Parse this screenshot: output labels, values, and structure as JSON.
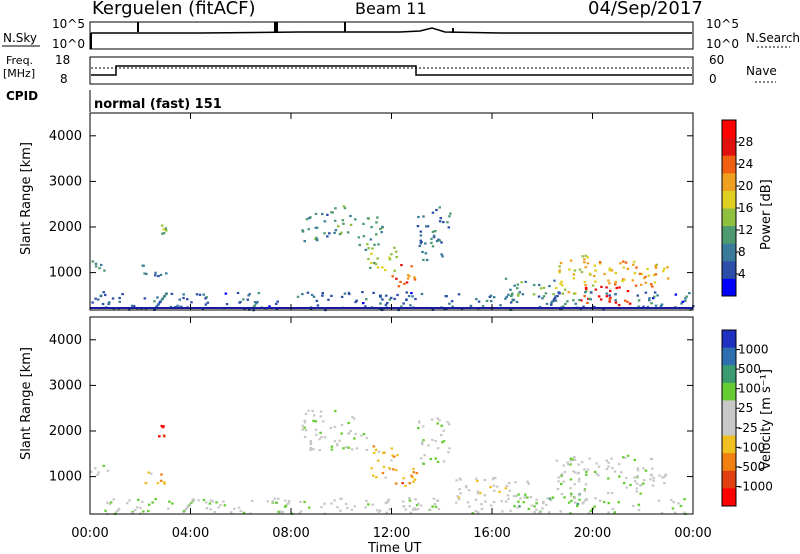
{
  "header": {
    "station": "Kerguelen (fitACF)",
    "beam": "Beam 11",
    "date": "04/Sep/2017"
  },
  "status_panel": {
    "nsky_label": "N.Sky",
    "nsky_ticks": [
      "10^5",
      "10^0"
    ],
    "nsearch_label": "N.Search",
    "nsearch_ticks": [
      "10^5",
      "10^0"
    ],
    "freq_label_1": "Freq.",
    "freq_label_2": "[MHz]",
    "freq_ticks": [
      "18",
      "8"
    ],
    "nave_label": "Nave",
    "nave_ticks": [
      "60",
      "0"
    ],
    "cpid_label": "CPID",
    "cpid_value": "normal (fast) 151"
  },
  "x_axis": {
    "label": "Time UT",
    "ticks": [
      "00:00",
      "04:00",
      "08:00",
      "12:00",
      "16:00",
      "20:00",
      "00:00"
    ],
    "range_hours": [
      0,
      24
    ]
  },
  "chart_data": [
    {
      "type": "heatmap",
      "quantity": "power",
      "ylabel": "Slant Range [km]",
      "yticks": [
        "1000",
        "2000",
        "3000",
        "4000"
      ],
      "ylim": [
        180,
        4500
      ],
      "colorbar_label": "Power [dB]",
      "colorbar_ticks": [
        "4",
        "8",
        "12",
        "16",
        "20",
        "24",
        "28"
      ],
      "colorbar_range": [
        0,
        32
      ],
      "colors": [
        "#0000ff",
        "#2c4ea8",
        "#3a7a9a",
        "#4e9a70",
        "#8fc040",
        "#e0d020",
        "#f0a020",
        "#f06010",
        "#e01010",
        "#ff0000"
      ],
      "blobs": [
        {
          "t0": 0.0,
          "t1": 0.8,
          "r0": 1050,
          "r1": 1300,
          "v": 10
        },
        {
          "t0": 2.0,
          "t1": 3.0,
          "r0": 850,
          "r1": 1200,
          "v": 9
        },
        {
          "t0": 2.7,
          "t1": 3.0,
          "r0": 1850,
          "r1": 2150,
          "v": 14
        },
        {
          "t0": 8.4,
          "t1": 9.6,
          "r0": 1700,
          "r1": 2400,
          "v": 9
        },
        {
          "t0": 9.6,
          "t1": 10.6,
          "r0": 1850,
          "r1": 2500,
          "v": 11
        },
        {
          "t0": 10.6,
          "t1": 11.6,
          "r0": 1500,
          "r1": 2300,
          "v": 12
        },
        {
          "t0": 11.0,
          "t1": 12.2,
          "r0": 1000,
          "r1": 1600,
          "v": 15
        },
        {
          "t0": 12.0,
          "t1": 13.0,
          "r0": 700,
          "r1": 1200,
          "v": 25
        },
        {
          "t0": 13.0,
          "t1": 14.3,
          "r0": 1300,
          "r1": 2500,
          "v": 8
        },
        {
          "t0": 16.5,
          "t1": 18.5,
          "r0": 400,
          "r1": 900,
          "v": 11
        },
        {
          "t0": 18.5,
          "t1": 20.0,
          "r0": 500,
          "r1": 1400,
          "v": 18
        },
        {
          "t0": 19.5,
          "t1": 21.5,
          "r0": 300,
          "r1": 800,
          "v": 28
        },
        {
          "t0": 20.0,
          "t1": 22.5,
          "r0": 700,
          "r1": 1300,
          "v": 21
        },
        {
          "t0": 22.0,
          "t1": 23.0,
          "r0": 800,
          "r1": 1200,
          "v": 19
        },
        {
          "t0": 0.0,
          "t1": 24.0,
          "r0": 200,
          "r1": 600,
          "v": 7
        }
      ]
    },
    {
      "type": "heatmap",
      "quantity": "velocity",
      "ylabel": "Slant Range [km]",
      "yticks": [
        "1000",
        "2000",
        "3000",
        "4000"
      ],
      "ylim": [
        180,
        4500
      ],
      "colorbar_label": "Velocity [m s⁻¹]",
      "colorbar_ticks": [
        "1000",
        "500",
        "100",
        "25",
        "-25",
        "-100",
        "-500",
        "-1000"
      ],
      "colors": [
        "#2030c0",
        "#2f6fb0",
        "#3a9a70",
        "#66cc33",
        "#c8c8c8",
        "#c8c8c8",
        "#f0c020",
        "#f08010",
        "#e04010",
        "#ff0000"
      ],
      "blobs": [
        {
          "t0": 0.0,
          "t1": 0.8,
          "r0": 1050,
          "r1": 1300,
          "v": 4
        },
        {
          "t0": 2.0,
          "t1": 3.0,
          "r0": 850,
          "r1": 1200,
          "v": 6
        },
        {
          "t0": 2.7,
          "t1": 3.0,
          "r0": 1850,
          "r1": 2150,
          "v": 8
        },
        {
          "t0": 8.4,
          "t1": 11.0,
          "r0": 1600,
          "r1": 2500,
          "v": 4
        },
        {
          "t0": 11.0,
          "t1": 12.2,
          "r0": 1000,
          "r1": 1700,
          "v": 6
        },
        {
          "t0": 12.0,
          "t1": 13.0,
          "r0": 700,
          "r1": 1200,
          "v": 7
        },
        {
          "t0": 13.0,
          "t1": 14.3,
          "r0": 1300,
          "r1": 2300,
          "v": 4
        },
        {
          "t0": 14.5,
          "t1": 17.5,
          "r0": 500,
          "r1": 1000,
          "v": 5
        },
        {
          "t0": 17.0,
          "t1": 19.5,
          "r0": 350,
          "r1": 650,
          "v": 3
        },
        {
          "t0": 18.5,
          "t1": 22.5,
          "r0": 600,
          "r1": 1500,
          "v": 4
        },
        {
          "t0": 22.0,
          "t1": 23.0,
          "r0": 750,
          "r1": 1100,
          "v": 4
        },
        {
          "t0": 0.0,
          "t1": 24.0,
          "r0": 200,
          "r1": 550,
          "v": 4
        }
      ]
    }
  ]
}
